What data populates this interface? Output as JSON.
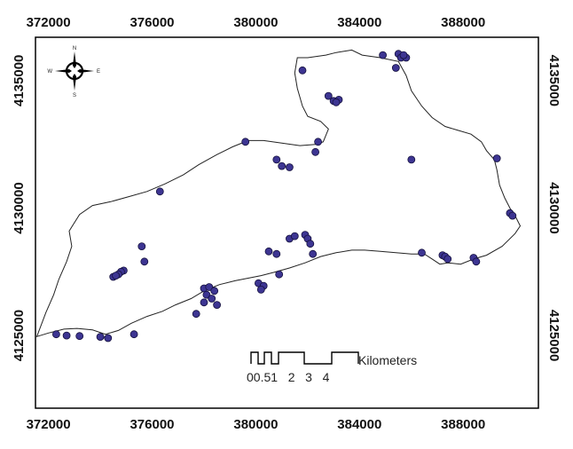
{
  "map": {
    "x_axis": {
      "ticks": [
        372000,
        376000,
        380000,
        384000,
        388000
      ],
      "range": [
        371500,
        390900
      ]
    },
    "y_axis": {
      "ticks": [
        4125000,
        4130000,
        4135000
      ],
      "range": [
        4122150,
        4136700
      ]
    },
    "compass": {
      "n": "N",
      "s": "S",
      "e": "E",
      "w": "W"
    },
    "scale_bar": {
      "unit": "Kilometers",
      "labels": [
        "0",
        "0.5",
        "1",
        "2",
        "3",
        "4"
      ],
      "label_text": "00.51   2   3   4"
    },
    "boundary": [
      [
        371550,
        4124960
      ],
      [
        372000,
        4125100
      ],
      [
        372600,
        4125250
      ],
      [
        373100,
        4125280
      ],
      [
        373700,
        4125220
      ],
      [
        374200,
        4125050
      ],
      [
        374700,
        4125200
      ],
      [
        375200,
        4125480
      ],
      [
        375800,
        4125750
      ],
      [
        376400,
        4125950
      ],
      [
        376900,
        4126200
      ],
      [
        377500,
        4126450
      ],
      [
        378000,
        4126750
      ],
      [
        378600,
        4127000
      ],
      [
        379200,
        4127150
      ],
      [
        379700,
        4127250
      ],
      [
        380200,
        4127350
      ],
      [
        380700,
        4127480
      ],
      [
        381300,
        4127650
      ],
      [
        381900,
        4127850
      ],
      [
        382500,
        4128100
      ],
      [
        383100,
        4128250
      ],
      [
        383700,
        4128350
      ],
      [
        384200,
        4128350
      ],
      [
        384800,
        4128300
      ],
      [
        385400,
        4128250
      ],
      [
        386000,
        4128200
      ],
      [
        386500,
        4128200
      ],
      [
        386800,
        4128000
      ],
      [
        387100,
        4127800
      ],
      [
        387400,
        4127850
      ],
      [
        387900,
        4127800
      ],
      [
        388400,
        4128000
      ],
      [
        388900,
        4128150
      ],
      [
        389500,
        4128500
      ],
      [
        390000,
        4129000
      ],
      [
        390200,
        4129300
      ],
      [
        390000,
        4129700
      ],
      [
        389800,
        4130000
      ],
      [
        389600,
        4130400
      ],
      [
        389400,
        4130900
      ],
      [
        389300,
        4131500
      ],
      [
        389200,
        4131900
      ],
      [
        388900,
        4132250
      ],
      [
        388700,
        4132600
      ],
      [
        388300,
        4132900
      ],
      [
        387800,
        4133050
      ],
      [
        387300,
        4133200
      ],
      [
        386800,
        4133550
      ],
      [
        386400,
        4134000
      ],
      [
        386000,
        4134600
      ],
      [
        385800,
        4135200
      ],
      [
        385500,
        4135750
      ],
      [
        384800,
        4135900
      ],
      [
        384100,
        4136000
      ],
      [
        383700,
        4136200
      ],
      [
        383100,
        4136100
      ],
      [
        382700,
        4136000
      ],
      [
        382000,
        4135900
      ],
      [
        381600,
        4135900
      ],
      [
        381500,
        4135300
      ],
      [
        381600,
        4134700
      ],
      [
        381800,
        4134000
      ],
      [
        382000,
        4133600
      ],
      [
        382500,
        4133400
      ],
      [
        382800,
        4133100
      ],
      [
        382600,
        4132600
      ],
      [
        382300,
        4132500
      ],
      [
        381700,
        4132450
      ],
      [
        381000,
        4132550
      ],
      [
        380300,
        4132650
      ],
      [
        379700,
        4132650
      ],
      [
        379100,
        4132400
      ],
      [
        378500,
        4132100
      ],
      [
        377800,
        4131700
      ],
      [
        377200,
        4131300
      ],
      [
        376500,
        4130950
      ],
      [
        375800,
        4130650
      ],
      [
        375100,
        4130450
      ],
      [
        374400,
        4130250
      ],
      [
        373700,
        4130100
      ],
      [
        373200,
        4129750
      ],
      [
        372800,
        4129100
      ],
      [
        372900,
        4128500
      ],
      [
        372700,
        4127900
      ],
      [
        372400,
        4127200
      ],
      [
        372200,
        4126600
      ],
      [
        371900,
        4125900
      ],
      [
        371550,
        4124960
      ]
    ],
    "points": [
      [
        384900,
        4136000
      ],
      [
        385500,
        4136050
      ],
      [
        385600,
        4135900
      ],
      [
        385800,
        4135900
      ],
      [
        385700,
        4136000
      ],
      [
        385400,
        4135500
      ],
      [
        381800,
        4135400
      ],
      [
        382800,
        4134400
      ],
      [
        383000,
        4134200
      ],
      [
        383200,
        4134250
      ],
      [
        383100,
        4134150
      ],
      [
        379600,
        4132600
      ],
      [
        382400,
        4132600
      ],
      [
        382300,
        4132200
      ],
      [
        380800,
        4131900
      ],
      [
        381000,
        4131650
      ],
      [
        381300,
        4131600
      ],
      [
        386000,
        4131900
      ],
      [
        389300,
        4131950
      ],
      [
        376300,
        4130650
      ],
      [
        389800,
        4129800
      ],
      [
        389900,
        4129700
      ],
      [
        375600,
        4128500
      ],
      [
        381300,
        4128800
      ],
      [
        381500,
        4128900
      ],
      [
        381900,
        4128950
      ],
      [
        382000,
        4128800
      ],
      [
        382100,
        4128600
      ],
      [
        380500,
        4128300
      ],
      [
        380800,
        4128200
      ],
      [
        382200,
        4128200
      ],
      [
        386400,
        4128250
      ],
      [
        387200,
        4128150
      ],
      [
        387300,
        4128100
      ],
      [
        387400,
        4128000
      ],
      [
        388400,
        4128050
      ],
      [
        388500,
        4127900
      ],
      [
        375700,
        4127900
      ],
      [
        374900,
        4127550
      ],
      [
        374800,
        4127500
      ],
      [
        374700,
        4127400
      ],
      [
        374500,
        4127300
      ],
      [
        374600,
        4127350
      ],
      [
        380900,
        4127400
      ],
      [
        380100,
        4127050
      ],
      [
        380300,
        4126950
      ],
      [
        380200,
        4126800
      ],
      [
        378000,
        4126850
      ],
      [
        378200,
        4126900
      ],
      [
        378400,
        4126750
      ],
      [
        378100,
        4126600
      ],
      [
        378300,
        4126450
      ],
      [
        378000,
        4126300
      ],
      [
        378500,
        4126200
      ],
      [
        377700,
        4125850
      ],
      [
        372300,
        4125050
      ],
      [
        372700,
        4125000
      ],
      [
        373200,
        4124980
      ],
      [
        374000,
        4124950
      ],
      [
        374300,
        4124900
      ],
      [
        375300,
        4125050
      ]
    ],
    "colors": {
      "point_fill": "#3d3592",
      "point_stroke": "#14103d",
      "boundary": "#222222",
      "frame": "#000000"
    }
  }
}
